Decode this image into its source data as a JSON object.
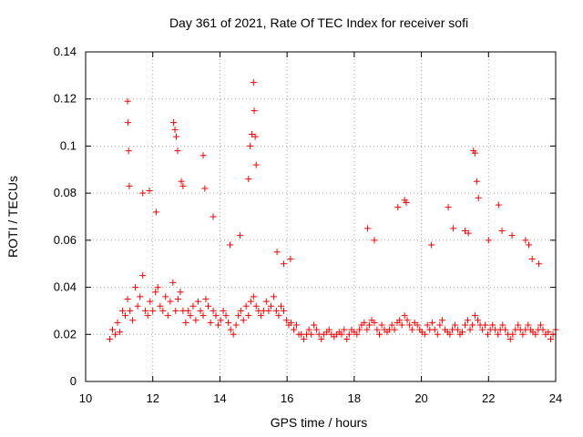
{
  "chart_data": {
    "type": "scatter",
    "title": "Day 361 of 2021, Rate Of TEC Index for receiver sofi",
    "xlabel": "GPS time / hours",
    "ylabel": "ROTI / TECUs",
    "xlim": [
      10,
      24
    ],
    "ylim": [
      0,
      0.14
    ],
    "xticks": [
      10,
      12,
      14,
      16,
      18,
      20,
      22,
      24
    ],
    "yticks": [
      0,
      0.02,
      0.04,
      0.06,
      0.08,
      0.1,
      0.12,
      0.14
    ],
    "grid": true,
    "marker": "+",
    "color": "#ff0000",
    "series": [
      {
        "name": "ROTI",
        "x": [
          10.72,
          10.8,
          10.88,
          10.95,
          11.02,
          11.1,
          11.18,
          11.25,
          11.32,
          11.4,
          11.48,
          11.55,
          11.62,
          11.7,
          11.78,
          11.85,
          11.92,
          12.0,
          12.08,
          12.15,
          12.22,
          12.3,
          12.38,
          12.45,
          12.52,
          12.6,
          12.68,
          12.75,
          12.82,
          12.9,
          12.98,
          13.05,
          13.12,
          13.2,
          13.28,
          13.35,
          13.42,
          13.5,
          13.58,
          13.65,
          13.72,
          13.8,
          13.88,
          13.95,
          14.02,
          14.1,
          14.18,
          14.25,
          14.32,
          14.4,
          14.48,
          14.55,
          14.62,
          14.7,
          14.78,
          14.85,
          14.92,
          15.0,
          15.08,
          15.15,
          15.22,
          15.3,
          15.38,
          15.45,
          15.52,
          15.6,
          15.68,
          15.75,
          15.82,
          15.9,
          15.98,
          16.05,
          16.12,
          16.2,
          16.28,
          16.35,
          16.42,
          16.5,
          16.58,
          16.65,
          16.72,
          16.8,
          16.88,
          16.95,
          17.02,
          17.1,
          17.18,
          17.25,
          17.32,
          17.4,
          17.48,
          17.55,
          17.62,
          17.7,
          17.78,
          17.85,
          17.92,
          18.0,
          18.08,
          18.15,
          18.22,
          18.3,
          18.38,
          18.45,
          18.52,
          18.6,
          18.68,
          18.75,
          18.82,
          18.9,
          18.98,
          19.05,
          19.12,
          19.2,
          19.28,
          19.35,
          19.42,
          19.5,
          19.58,
          19.65,
          19.72,
          19.8,
          19.88,
          19.95,
          20.02,
          20.1,
          20.18,
          20.25,
          20.32,
          20.4,
          20.48,
          20.55,
          20.62,
          20.7,
          20.78,
          20.85,
          20.92,
          21.0,
          21.08,
          21.15,
          21.22,
          21.3,
          21.38,
          21.45,
          21.52,
          21.6,
          21.68,
          21.75,
          21.82,
          21.9,
          21.98,
          22.05,
          22.12,
          22.2,
          22.28,
          22.35,
          22.42,
          22.5,
          22.58,
          22.65,
          22.72,
          22.8,
          22.88,
          22.95,
          23.02,
          23.1,
          23.18,
          23.25,
          23.32,
          23.4,
          23.48,
          23.55,
          23.62,
          23.7,
          23.78,
          23.85,
          23.92,
          24.0,
          11.25,
          11.26,
          11.28,
          11.3,
          12.62,
          12.66,
          12.7,
          12.74,
          12.85,
          12.9,
          13.5,
          13.55,
          14.85,
          14.9,
          14.95,
          15.0,
          15.02,
          15.05,
          15.08,
          21.55,
          21.6,
          21.65,
          21.7,
          22.3,
          22.4,
          23.1,
          23.2,
          23.3,
          19.5,
          19.55,
          19.3,
          20.8,
          20.95,
          18.4,
          18.6,
          11.7,
          11.9,
          12.1,
          13.8,
          14.3,
          14.6,
          15.7,
          15.9,
          16.1,
          20.3,
          21.3,
          21.4,
          22.0,
          22.7,
          23.5
        ],
        "y": [
          0.018,
          0.022,
          0.02,
          0.025,
          0.021,
          0.03,
          0.028,
          0.035,
          0.03,
          0.026,
          0.04,
          0.032,
          0.036,
          0.045,
          0.03,
          0.028,
          0.034,
          0.03,
          0.038,
          0.04,
          0.032,
          0.03,
          0.036,
          0.028,
          0.034,
          0.042,
          0.03,
          0.035,
          0.038,
          0.03,
          0.025,
          0.03,
          0.028,
          0.032,
          0.026,
          0.034,
          0.03,
          0.028,
          0.035,
          0.032,
          0.025,
          0.03,
          0.028,
          0.024,
          0.026,
          0.03,
          0.028,
          0.025,
          0.022,
          0.02,
          0.024,
          0.028,
          0.03,
          0.026,
          0.032,
          0.028,
          0.034,
          0.036,
          0.032,
          0.03,
          0.028,
          0.03,
          0.034,
          0.03,
          0.032,
          0.036,
          0.03,
          0.028,
          0.032,
          0.03,
          0.026,
          0.024,
          0.025,
          0.022,
          0.024,
          0.02,
          0.02,
          0.018,
          0.02,
          0.022,
          0.02,
          0.024,
          0.022,
          0.02,
          0.018,
          0.02,
          0.021,
          0.022,
          0.02,
          0.019,
          0.02,
          0.021,
          0.02,
          0.022,
          0.018,
          0.02,
          0.022,
          0.021,
          0.02,
          0.022,
          0.024,
          0.025,
          0.022,
          0.024,
          0.026,
          0.025,
          0.022,
          0.02,
          0.024,
          0.022,
          0.021,
          0.022,
          0.024,
          0.022,
          0.025,
          0.026,
          0.024,
          0.028,
          0.026,
          0.024,
          0.022,
          0.025,
          0.024,
          0.022,
          0.021,
          0.02,
          0.024,
          0.022,
          0.025,
          0.022,
          0.02,
          0.024,
          0.026,
          0.022,
          0.021,
          0.02,
          0.022,
          0.024,
          0.022,
          0.02,
          0.021,
          0.024,
          0.026,
          0.022,
          0.024,
          0.028,
          0.026,
          0.024,
          0.022,
          0.024,
          0.02,
          0.022,
          0.024,
          0.022,
          0.02,
          0.022,
          0.024,
          0.022,
          0.02,
          0.018,
          0.02,
          0.022,
          0.024,
          0.022,
          0.02,
          0.022,
          0.024,
          0.022,
          0.021,
          0.02,
          0.022,
          0.024,
          0.022,
          0.02,
          0.021,
          0.018,
          0.02,
          0.022,
          0.119,
          0.11,
          0.098,
          0.083,
          0.11,
          0.107,
          0.104,
          0.098,
          0.085,
          0.083,
          0.096,
          0.082,
          0.086,
          0.1,
          0.105,
          0.127,
          0.115,
          0.104,
          0.092,
          0.098,
          0.097,
          0.085,
          0.078,
          0.075,
          0.064,
          0.06,
          0.058,
          0.052,
          0.077,
          0.076,
          0.074,
          0.074,
          0.065,
          0.065,
          0.06,
          0.08,
          0.081,
          0.072,
          0.07,
          0.058,
          0.062,
          0.055,
          0.05,
          0.052,
          0.058,
          0.064,
          0.063,
          0.06,
          0.062,
          0.05
        ]
      }
    ]
  }
}
